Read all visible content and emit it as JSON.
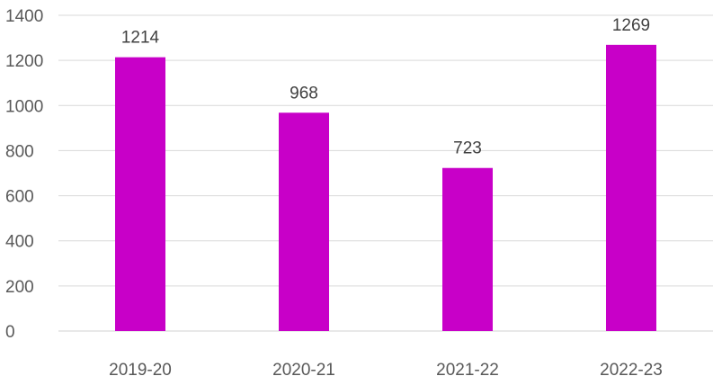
{
  "chart_data": {
    "type": "bar",
    "categories": [
      "2019-20",
      "2020-21",
      "2021-22",
      "2022-23"
    ],
    "values": [
      1214,
      968,
      723,
      1269
    ],
    "ylim": [
      0,
      1400
    ],
    "yticks": [
      0,
      200,
      400,
      600,
      800,
      1000,
      1200,
      1400
    ],
    "grid": true,
    "data_labels": true,
    "legend": "none",
    "bar_color": "#C800C8",
    "grid_color": "#D9D9D9"
  }
}
